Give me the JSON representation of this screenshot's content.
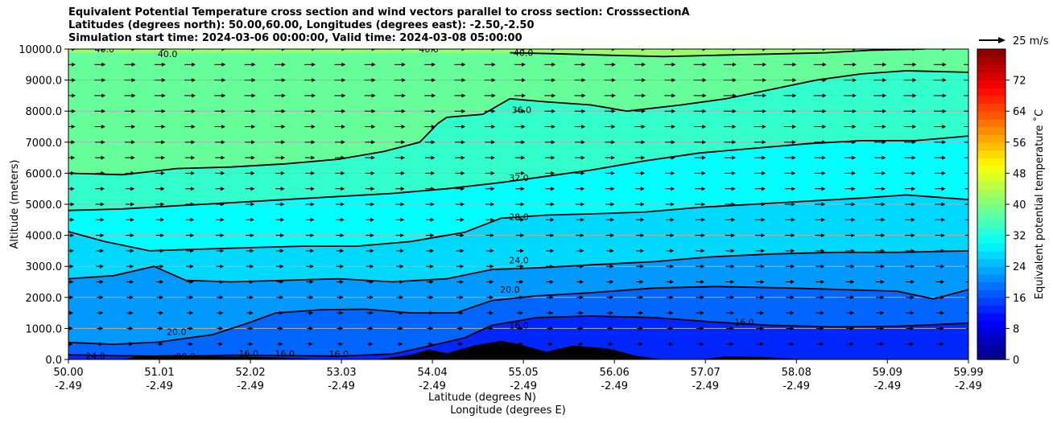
{
  "chart_data": {
    "type": "heatmap",
    "title_lines": [
      "Equivalent Potential Temperature cross section and wind vectors parallel to cross section: CrosssectionA",
      "Latitudes (degrees north): 50.00,60.00, Longitudes (degrees east): -2.50,-2.50",
      "Simulation start time: 2024-03-06 00:00:00, Valid time: 2024-03-08 05:00:00"
    ],
    "xlabel_line1": "Latitude (degrees N)",
    "xlabel_line2": "Longitude (degrees E)",
    "ylabel": "Altitude (meters)",
    "xlim": [
      50.0,
      59.99
    ],
    "ylim": [
      0,
      10000
    ],
    "x_ticks": [
      {
        "value": 50.0,
        "lat": "50.00",
        "lon": "-2.49"
      },
      {
        "value": 51.01,
        "lat": "51.01",
        "lon": "-2.49"
      },
      {
        "value": 52.02,
        "lat": "52.02",
        "lon": "-2.49"
      },
      {
        "value": 53.03,
        "lat": "53.03",
        "lon": "-2.49"
      },
      {
        "value": 54.04,
        "lat": "54.04",
        "lon": "-2.49"
      },
      {
        "value": 55.05,
        "lat": "55.05",
        "lon": "-2.49"
      },
      {
        "value": 56.06,
        "lat": "56.06",
        "lon": "-2.49"
      },
      {
        "value": 57.07,
        "lat": "57.07",
        "lon": "-2.49"
      },
      {
        "value": 58.08,
        "lat": "58.08",
        "lon": "-2.49"
      },
      {
        "value": 59.09,
        "lat": "59.09",
        "lon": "-2.49"
      },
      {
        "value": 59.99,
        "lat": "59.99",
        "lon": "-2.49"
      }
    ],
    "y_ticks": [
      {
        "value": 0,
        "label": "0.0"
      },
      {
        "value": 1000,
        "label": "1000.0"
      },
      {
        "value": 2000,
        "label": "2000.0"
      },
      {
        "value": 3000,
        "label": "3000.0"
      },
      {
        "value": 4000,
        "label": "4000.0"
      },
      {
        "value": 5000,
        "label": "5000.0"
      },
      {
        "value": 6000,
        "label": "6000.0"
      },
      {
        "value": 7000,
        "label": "7000.0"
      },
      {
        "value": 8000,
        "label": "8000.0"
      },
      {
        "value": 9000,
        "label": "9000.0"
      },
      {
        "value": 10000,
        "label": "10000.0"
      }
    ],
    "grid": "horizontal",
    "colorbar": {
      "label": "Equivalent potential temperature ˚C",
      "min": 0,
      "max": 80,
      "step": 2,
      "ticks": [
        {
          "value": 0,
          "label": "0"
        },
        {
          "value": 8,
          "label": "8"
        },
        {
          "value": 16,
          "label": "16"
        },
        {
          "value": 24,
          "label": "24"
        },
        {
          "value": 32,
          "label": "32"
        },
        {
          "value": 40,
          "label": "40"
        },
        {
          "value": 48,
          "label": "48"
        },
        {
          "value": 56,
          "label": "56"
        },
        {
          "value": 64,
          "label": "64"
        },
        {
          "value": 72,
          "label": "72"
        }
      ],
      "colormap": "jet"
    },
    "quiver_key": {
      "label": "25 m/s",
      "speed": 25
    },
    "contours": [
      {
        "level": 16.0,
        "label": "16.0",
        "points": [
          [
            50.0,
            150
          ],
          [
            50.6,
            120
          ],
          [
            51.2,
            100
          ],
          [
            51.8,
            140
          ],
          [
            52.4,
            130
          ],
          [
            53.0,
            110
          ],
          [
            53.6,
            180
          ],
          [
            54.0,
            430
          ],
          [
            54.4,
            700
          ],
          [
            54.7,
            1100
          ],
          [
            55.2,
            1350
          ],
          [
            55.8,
            1400
          ],
          [
            56.5,
            1350
          ],
          [
            57.2,
            1200
          ],
          [
            57.8,
            1100
          ],
          [
            58.5,
            1050
          ],
          [
            59.2,
            1070
          ],
          [
            59.99,
            1170
          ]
        ]
      },
      {
        "level": 20.0,
        "label": "20.0",
        "points": [
          [
            50.0,
            550
          ],
          [
            50.5,
            490
          ],
          [
            51.0,
            560
          ],
          [
            51.6,
            800
          ],
          [
            52.0,
            1180
          ],
          [
            52.3,
            1500
          ],
          [
            52.8,
            1600
          ],
          [
            53.3,
            1620
          ],
          [
            53.8,
            1500
          ],
          [
            54.3,
            1500
          ],
          [
            54.7,
            1900
          ],
          [
            55.2,
            2050
          ],
          [
            55.8,
            2150
          ],
          [
            56.5,
            2300
          ],
          [
            57.2,
            2350
          ],
          [
            58.0,
            2300
          ],
          [
            58.6,
            2250
          ],
          [
            59.2,
            2200
          ],
          [
            59.6,
            1950
          ],
          [
            59.99,
            2250
          ]
        ]
      },
      {
        "level": 24.0,
        "label": "24.0",
        "points": [
          [
            50.0,
            2600
          ],
          [
            50.5,
            2700
          ],
          [
            50.95,
            3000
          ],
          [
            51.3,
            2550
          ],
          [
            51.8,
            2500
          ],
          [
            52.4,
            2550
          ],
          [
            53.0,
            2600
          ],
          [
            53.6,
            2500
          ],
          [
            54.2,
            2600
          ],
          [
            54.7,
            2900
          ],
          [
            55.2,
            2950
          ],
          [
            55.8,
            3050
          ],
          [
            56.5,
            3150
          ],
          [
            57.1,
            3300
          ],
          [
            57.8,
            3400
          ],
          [
            58.5,
            3450
          ],
          [
            59.2,
            3450
          ],
          [
            59.99,
            3500
          ]
        ]
      },
      {
        "level": 28.0,
        "label": "28.0",
        "points": [
          [
            50.0,
            4120
          ],
          [
            50.4,
            3800
          ],
          [
            50.9,
            3500
          ],
          [
            51.4,
            3550
          ],
          [
            52.0,
            3600
          ],
          [
            52.6,
            3650
          ],
          [
            53.2,
            3650
          ],
          [
            53.8,
            3800
          ],
          [
            54.4,
            4100
          ],
          [
            54.8,
            4550
          ],
          [
            55.3,
            4650
          ],
          [
            55.9,
            4700
          ],
          [
            56.4,
            4750
          ],
          [
            57.0,
            4900
          ],
          [
            57.6,
            5000
          ],
          [
            58.2,
            5100
          ],
          [
            58.8,
            5200
          ],
          [
            59.3,
            5300
          ],
          [
            59.99,
            5150
          ]
        ]
      },
      {
        "level": 32.0,
        "label": "32.0",
        "points": [
          [
            50.0,
            4800
          ],
          [
            50.6,
            4850
          ],
          [
            51.2,
            4950
          ],
          [
            51.8,
            5050
          ],
          [
            52.4,
            5150
          ],
          [
            53.0,
            5250
          ],
          [
            53.6,
            5350
          ],
          [
            54.2,
            5500
          ],
          [
            54.8,
            5700
          ],
          [
            55.3,
            5900
          ],
          [
            55.8,
            6100
          ],
          [
            56.4,
            6400
          ],
          [
            57.0,
            6650
          ],
          [
            57.6,
            6800
          ],
          [
            58.2,
            6950
          ],
          [
            58.8,
            7050
          ],
          [
            59.4,
            7050
          ],
          [
            59.99,
            7200
          ]
        ]
      },
      {
        "level": 36.0,
        "label": "36.0",
        "points": [
          [
            50.0,
            6000
          ],
          [
            50.6,
            5950
          ],
          [
            51.2,
            6150
          ],
          [
            51.8,
            6200
          ],
          [
            52.4,
            6300
          ],
          [
            53.0,
            6450
          ],
          [
            53.5,
            6700
          ],
          [
            53.9,
            7000
          ],
          [
            54.1,
            7600
          ],
          [
            54.2,
            7800
          ],
          [
            54.6,
            7900
          ],
          [
            54.9,
            8400
          ],
          [
            55.3,
            8300
          ],
          [
            55.8,
            8200
          ],
          [
            56.2,
            8000
          ],
          [
            56.8,
            8200
          ],
          [
            57.3,
            8400
          ],
          [
            57.8,
            8700
          ],
          [
            58.3,
            9000
          ],
          [
            58.8,
            9200
          ],
          [
            59.3,
            9300
          ],
          [
            59.99,
            9250
          ]
        ]
      },
      {
        "level": 40.0,
        "label": "40.0",
        "points": [
          [
            54.9,
            9880
          ],
          [
            55.4,
            9850
          ],
          [
            56.0,
            9800
          ],
          [
            56.6,
            9760
          ],
          [
            57.2,
            9800
          ],
          [
            57.8,
            9840
          ],
          [
            58.4,
            9880
          ],
          [
            58.9,
            9960
          ],
          [
            59.5,
            10000
          ]
        ]
      }
    ],
    "clabels": [
      {
        "text": "40.0",
        "x": 50.4,
        "y": 10000
      },
      {
        "text": "40.0",
        "x": 51.1,
        "y": 9850
      },
      {
        "text": "40.0",
        "x": 54.0,
        "y": 10000
      },
      {
        "text": "40.0",
        "x": 55.05,
        "y": 9880
      },
      {
        "text": "36.0",
        "x": 55.03,
        "y": 8050
      },
      {
        "text": "32.0",
        "x": 55.0,
        "y": 5850
      },
      {
        "text": "28.0",
        "x": 55.0,
        "y": 4600
      },
      {
        "text": "24.0",
        "x": 55.0,
        "y": 3200
      },
      {
        "text": "20.0",
        "x": 54.9,
        "y": 2250
      },
      {
        "text": "16.0",
        "x": 55.0,
        "y": 1100
      },
      {
        "text": "16.0",
        "x": 57.5,
        "y": 1200
      },
      {
        "text": "20.0",
        "x": 51.2,
        "y": 900
      },
      {
        "text": "20.0",
        "x": 51.3,
        "y": 100
      },
      {
        "text": "24.0",
        "x": 50.3,
        "y": 120
      },
      {
        "text": "16.0",
        "x": 52.0,
        "y": 200
      },
      {
        "text": "16.0",
        "x": 52.4,
        "y": 200
      },
      {
        "text": "16.0",
        "x": 53.0,
        "y": 180
      }
    ],
    "terrain": [
      [
        50.0,
        0
      ],
      [
        50.6,
        0
      ],
      [
        50.8,
        120
      ],
      [
        51.2,
        150
      ],
      [
        51.6,
        100
      ],
      [
        52.0,
        80
      ],
      [
        52.4,
        60
      ],
      [
        52.8,
        0
      ],
      [
        53.4,
        0
      ],
      [
        53.8,
        150
      ],
      [
        54.0,
        320
      ],
      [
        54.2,
        200
      ],
      [
        54.5,
        450
      ],
      [
        54.8,
        600
      ],
      [
        55.0,
        500
      ],
      [
        55.3,
        250
      ],
      [
        55.6,
        450
      ],
      [
        56.0,
        350
      ],
      [
        56.3,
        120
      ],
      [
        56.6,
        0
      ],
      [
        57.0,
        0
      ],
      [
        57.3,
        100
      ],
      [
        57.7,
        80
      ],
      [
        58.2,
        0
      ],
      [
        59.99,
        0
      ]
    ]
  }
}
